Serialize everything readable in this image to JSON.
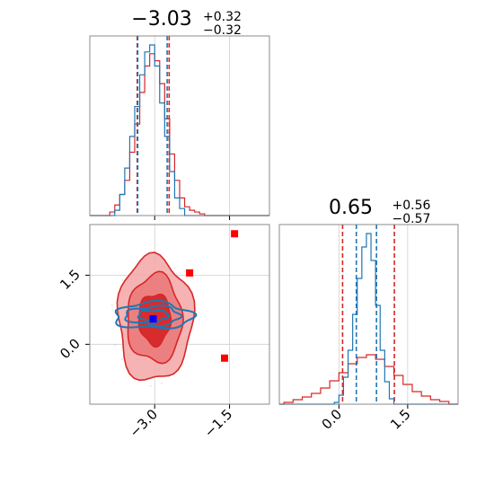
{
  "chart_data": {
    "type": "corner",
    "colors": {
      "series_a": "#d62728",
      "series_b": "#1f77b4",
      "marker_a": "#ff0000",
      "marker_b": "#0000ff"
    },
    "grid": true,
    "panels": [
      {
        "kind": "histogram",
        "title": {
          "median": "−3.03",
          "plus": "+0.32",
          "minus": "−0.32"
        },
        "xlim": [
          -4.3,
          -0.7
        ],
        "series": [
          {
            "color": "#d62728",
            "bin_edges": [
              -3.9,
              -3.8,
              -3.7,
              -3.6,
              -3.5,
              -3.4,
              -3.3,
              -3.2,
              -3.1,
              -3.0,
              -2.9,
              -2.8,
              -2.7,
              -2.6,
              -2.5,
              -2.4,
              -2.3,
              -2.2,
              -2.1,
              -2.0
            ],
            "values": [
              0.02,
              0.06,
              0.12,
              0.2,
              0.36,
              0.52,
              0.7,
              0.85,
              0.92,
              0.88,
              0.75,
              0.55,
              0.35,
              0.2,
              0.1,
              0.05,
              0.03,
              0.02,
              0.01
            ],
            "quantiles": [
              -3.35,
              -2.71
            ]
          },
          {
            "color": "#1f77b4",
            "bin_edges": [
              -3.8,
              -3.7,
              -3.6,
              -3.5,
              -3.4,
              -3.3,
              -3.2,
              -3.1,
              -3.0,
              -2.9,
              -2.8,
              -2.7,
              -2.6,
              -2.5,
              -2.4
            ],
            "values": [
              0.03,
              0.12,
              0.27,
              0.45,
              0.62,
              0.8,
              0.93,
              0.97,
              0.85,
              0.64,
              0.45,
              0.25,
              0.1,
              0.04
            ],
            "quantiles": [
              -3.34,
              -2.75
            ]
          }
        ]
      },
      {
        "kind": "contour",
        "xlim": [
          -4.3,
          -0.7
        ],
        "ylim": [
          -1.3,
          2.6
        ],
        "xticks": [
          "−3.0",
          "−1.5"
        ],
        "xtick_values": [
          -3.0,
          -1.5
        ],
        "yticks": [
          "0.0",
          "1.5"
        ],
        "ytick_values": [
          0.0,
          1.5
        ],
        "series": [
          {
            "color": "#d62728",
            "center": [
              -3.0,
              0.55
            ],
            "levels": [
              {
                "rx": 0.75,
                "ry": 1.35
              },
              {
                "rx": 0.55,
                "ry": 0.95
              },
              {
                "rx": 0.32,
                "ry": 0.55
              }
            ]
          },
          {
            "color": "#1f77b4",
            "center": [
              -3.03,
              0.62
            ],
            "levels": [
              {
                "rx": 0.78,
                "ry": 0.28
              },
              {
                "rx": 0.55,
                "ry": 0.2
              },
              {
                "rx": 0.3,
                "ry": 0.12
              }
            ]
          }
        ],
        "markers": [
          {
            "color": "#ff0000",
            "points": [
              [
                -1.4,
                2.4
              ],
              [
                -2.3,
                1.55
              ],
              [
                -1.6,
                -0.3
              ]
            ]
          },
          {
            "color": "#0000ff",
            "points": [
              [
                -3.03,
                0.55
              ]
            ]
          }
        ]
      },
      {
        "kind": "histogram",
        "title": {
          "median": "0.65",
          "plus": "+0.56",
          "minus": "−0.57"
        },
        "xlim": [
          -1.3,
          2.6
        ],
        "xticks": [
          "0.0",
          "1.5"
        ],
        "xtick_values": [
          0.0,
          1.5
        ],
        "series": [
          {
            "color": "#d62728",
            "bin_edges": [
              -1.2,
              -1.0,
              -0.8,
              -0.6,
              -0.4,
              -0.2,
              0.0,
              0.2,
              0.4,
              0.6,
              0.8,
              1.0,
              1.2,
              1.4,
              1.6,
              1.8,
              2.0,
              2.2,
              2.4
            ],
            "values": [
              0.02,
              0.05,
              0.08,
              0.12,
              0.18,
              0.26,
              0.35,
              0.45,
              0.52,
              0.55,
              0.5,
              0.42,
              0.32,
              0.22,
              0.14,
              0.09,
              0.05,
              0.03
            ],
            "quantiles": [
              0.08,
              1.21
            ]
          },
          {
            "color": "#1f77b4",
            "bin_edges": [
              -0.1,
              0.0,
              0.1,
              0.2,
              0.3,
              0.4,
              0.5,
              0.6,
              0.7,
              0.8,
              0.9,
              1.0,
              1.1,
              1.2
            ],
            "values": [
              0.02,
              0.1,
              0.3,
              0.6,
              1.0,
              1.4,
              1.75,
              1.9,
              1.6,
              1.1,
              0.6,
              0.25,
              0.06
            ],
            "quantiles": [
              0.38,
              0.82
            ]
          }
        ]
      }
    ]
  }
}
